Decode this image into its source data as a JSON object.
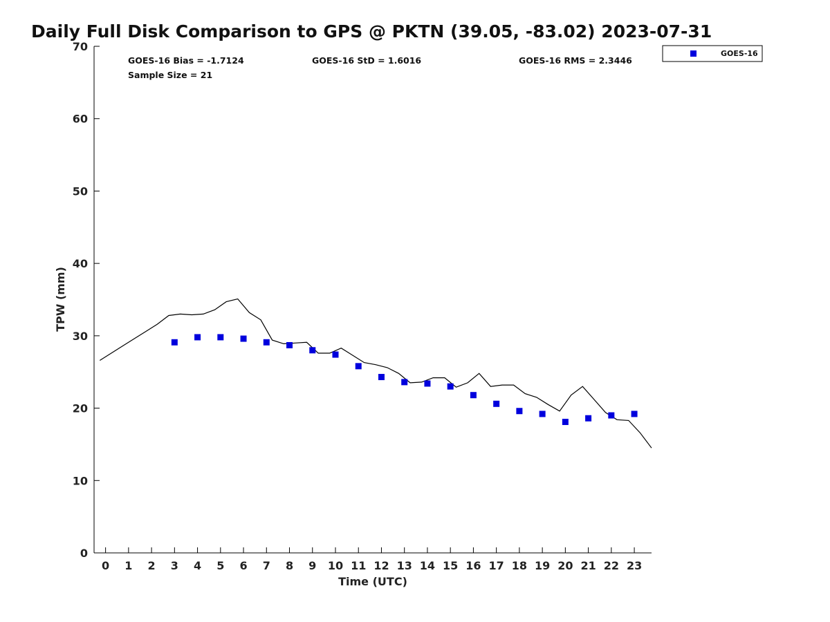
{
  "chart_data": {
    "type": "scatter",
    "title": "Daily Full Disk Comparison to GPS @ PKTN (39.05, -83.02) 2023-07-31",
    "xlabel": "Time (UTC)",
    "ylabel": "TPW (mm)",
    "xlim": [
      -0.5,
      23.75
    ],
    "ylim": [
      0,
      70
    ],
    "x_ticks": [
      0,
      1,
      2,
      3,
      4,
      5,
      6,
      7,
      8,
      9,
      10,
      11,
      12,
      13,
      14,
      15,
      16,
      17,
      18,
      19,
      20,
      21,
      22,
      23
    ],
    "y_ticks": [
      0,
      10,
      20,
      30,
      40,
      50,
      60,
      70
    ],
    "grid": false,
    "legend_position": "top-right",
    "stats": {
      "bias": "GOES-16 Bias = -1.7124",
      "std": "GOES-16 StD = 1.6016",
      "rms": "GOES-16 RMS = 2.3446",
      "sample_size": "Sample Size = 21"
    },
    "series": [
      {
        "name": "GOES-16",
        "kind": "scatter",
        "marker": "square",
        "color": "#0000dd",
        "x": [
          3,
          4,
          5,
          6,
          7,
          8,
          9,
          10,
          11,
          12,
          13,
          14,
          15,
          16,
          17,
          18,
          19,
          20,
          21,
          22,
          23
        ],
        "y": [
          29.1,
          29.8,
          29.8,
          29.6,
          29.1,
          28.7,
          28.0,
          27.4,
          25.8,
          24.3,
          23.6,
          23.4,
          23.0,
          21.8,
          20.6,
          19.6,
          19.2,
          18.1,
          18.6,
          19.0,
          19.2
        ]
      },
      {
        "kind": "line",
        "color": "#000000",
        "x": [
          -0.25,
          0.25,
          0.75,
          1.25,
          1.75,
          2.25,
          2.75,
          3.25,
          3.75,
          4.25,
          4.75,
          5.25,
          5.75,
          6.25,
          6.75,
          7.25,
          7.75,
          8.25,
          8.75,
          9.25,
          9.75,
          10.25,
          10.75,
          11.25,
          11.75,
          12.25,
          12.75,
          13.25,
          13.75,
          14.25,
          14.75,
          15.25,
          15.75,
          16.25,
          16.75,
          17.25,
          17.75,
          18.25,
          18.75,
          19.25,
          19.75,
          20.25,
          20.75,
          21.25,
          21.75,
          22.25,
          22.75,
          23.25,
          23.75
        ],
        "y": [
          26.6,
          27.6,
          28.6,
          29.6,
          30.6,
          31.6,
          32.8,
          33.0,
          32.9,
          33.0,
          33.6,
          34.7,
          35.1,
          33.2,
          32.2,
          29.4,
          28.9,
          29.0,
          29.1,
          27.6,
          27.6,
          28.3,
          27.3,
          26.3,
          26.0,
          25.6,
          24.8,
          23.5,
          23.6,
          24.2,
          24.2,
          22.9,
          23.5,
          24.8,
          23.0,
          23.2,
          23.2,
          22.0,
          21.5,
          20.5,
          19.6,
          21.8,
          23.0,
          21.2,
          19.4,
          18.4,
          18.3,
          16.6,
          14.5
        ]
      }
    ]
  },
  "legend": {
    "label": "GOES-16",
    "color": "#0000dd"
  }
}
